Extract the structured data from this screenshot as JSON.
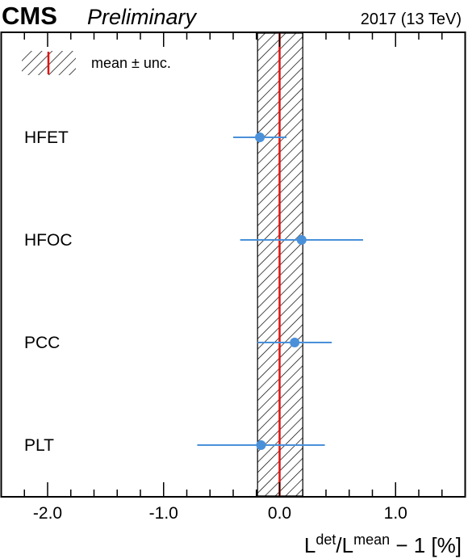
{
  "header": {
    "experiment": "CMS",
    "status": "Preliminary",
    "energy": "2017 (13 TeV)"
  },
  "legend": {
    "entry": "mean ± unc."
  },
  "xlabel": {
    "base1": "L",
    "sup1": "det",
    "slash": "/L",
    "sup2": "mean",
    "tail": " − 1 [%]"
  },
  "colors": {
    "marker": "#4a90d9",
    "mean_line": "#e3120b",
    "band_hatch": "#000000"
  },
  "chart_data": {
    "type": "scatter",
    "orientation": "horizontal",
    "categories": [
      "HFET",
      "HFOC",
      "PCC",
      "PLT"
    ],
    "values": [
      -0.17,
      0.19,
      0.13,
      -0.16
    ],
    "err_low": [
      0.23,
      0.53,
      0.32,
      0.55
    ],
    "err_high": [
      0.23,
      0.53,
      0.32,
      0.55
    ],
    "mean": 0.0,
    "mean_band": [
      -0.19,
      0.2
    ],
    "xlim": [
      -2.4,
      1.6
    ],
    "xticks": [
      -2.0,
      -1.0,
      0.0,
      1.0
    ],
    "xtick_labels": [
      "-2.0",
      "-1.0",
      "0.0",
      "1.0"
    ],
    "grid": false,
    "legend_position": "top-left"
  }
}
